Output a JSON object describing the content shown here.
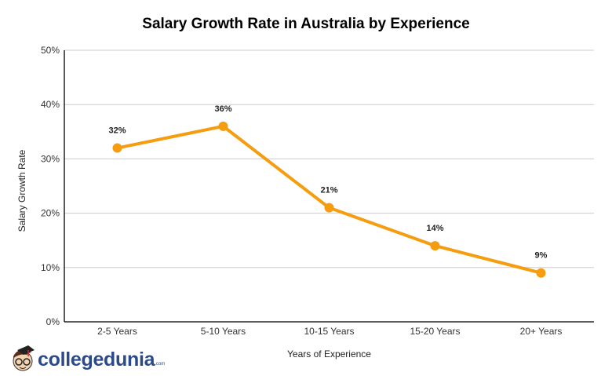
{
  "chart_data": {
    "type": "line",
    "title": "Salary Growth Rate in Australia by Experience",
    "xlabel": "Years of Experience",
    "ylabel": "Salary Growth Rate",
    "categories": [
      "2-5 Years",
      "5-10 Years",
      "10-15 Years",
      "15-20 Years",
      "20+ Years"
    ],
    "values": [
      32,
      36,
      21,
      14,
      9
    ],
    "data_labels": [
      "32%",
      "36%",
      "21%",
      "14%",
      "9%"
    ],
    "ylim": [
      0,
      50
    ],
    "yticks": [
      "0%",
      "10%",
      "20%",
      "30%",
      "40%",
      "50%"
    ],
    "grid": true,
    "legend": "none",
    "color": "#f59c0f"
  },
  "logo": {
    "text": "collegedunia",
    "suffix": ".com"
  }
}
